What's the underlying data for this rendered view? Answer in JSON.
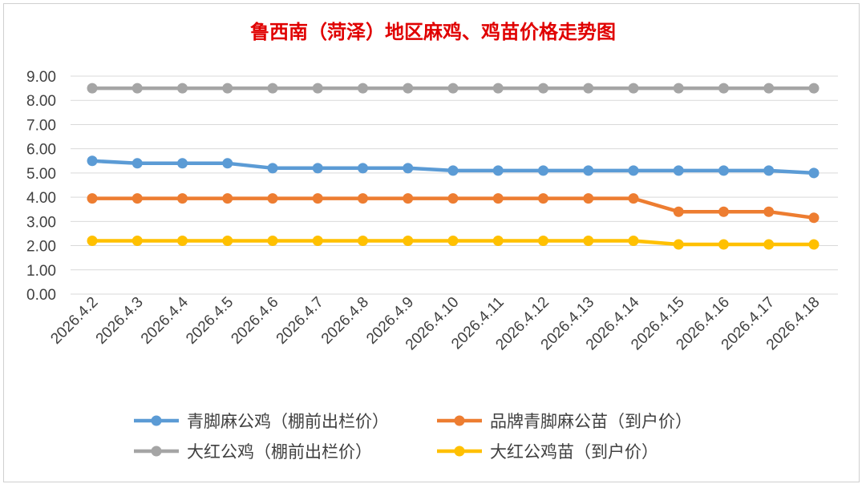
{
  "chart_data": {
    "type": "line",
    "title": "鲁西南（菏泽）地区麻鸡、鸡苗价格走势图",
    "categories": [
      "2026.4.2",
      "2026.4.3",
      "2026.4.4",
      "2026.4.5",
      "2026.4.6",
      "2026.4.7",
      "2026.4.8",
      "2026.4.9",
      "2026.4.10",
      "2026.4.11",
      "2026.4.12",
      "2026.4.13",
      "2026.4.14",
      "2026.4.15",
      "2026.4.16",
      "2026.4.17",
      "2026.4.18"
    ],
    "ylim": [
      0,
      9
    ],
    "yticks": [
      "0.00",
      "1.00",
      "2.00",
      "3.00",
      "4.00",
      "5.00",
      "6.00",
      "7.00",
      "8.00",
      "9.00"
    ],
    "grid": true,
    "legend_position": "bottom",
    "series": [
      {
        "name": "青脚麻公鸡（棚前出栏价）",
        "color": "#5B9BD5",
        "values": [
          5.5,
          5.4,
          5.4,
          5.4,
          5.2,
          5.2,
          5.2,
          5.2,
          5.1,
          5.1,
          5.1,
          5.1,
          5.1,
          5.1,
          5.1,
          5.1,
          5.0
        ]
      },
      {
        "name": "品牌青脚麻公苗（到户价）",
        "color": "#ED7D31",
        "values": [
          3.95,
          3.95,
          3.95,
          3.95,
          3.95,
          3.95,
          3.95,
          3.95,
          3.95,
          3.95,
          3.95,
          3.95,
          3.95,
          3.4,
          3.4,
          3.4,
          3.15
        ]
      },
      {
        "name": "大红公鸡（棚前出栏价）",
        "color": "#A5A5A5",
        "values": [
          8.5,
          8.5,
          8.5,
          8.5,
          8.5,
          8.5,
          8.5,
          8.5,
          8.5,
          8.5,
          8.5,
          8.5,
          8.5,
          8.5,
          8.5,
          8.5,
          8.5
        ]
      },
      {
        "name": "大红公鸡苗（到户价）",
        "color": "#FFC000",
        "values": [
          2.2,
          2.2,
          2.2,
          2.2,
          2.2,
          2.2,
          2.2,
          2.2,
          2.2,
          2.2,
          2.2,
          2.2,
          2.2,
          2.05,
          2.05,
          2.05,
          2.05
        ]
      }
    ]
  }
}
